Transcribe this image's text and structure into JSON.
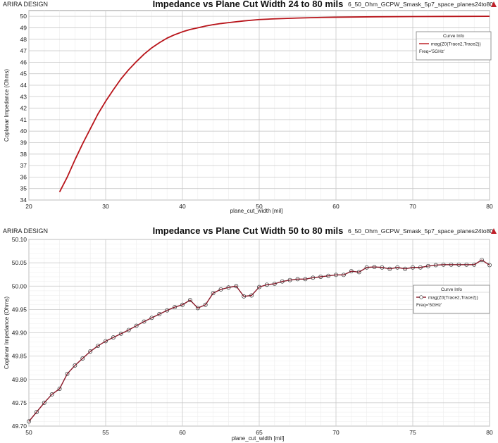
{
  "chart_data": [
    {
      "type": "line",
      "brand": "ARIRA DESIGN",
      "title": "Impedance vs Plane Cut Width 24 to 80 mils",
      "project": "6_50_Ohm_GCPW_Smask_5p7_space_planes24to80",
      "xlabel": "plane_cut_width [mil]",
      "ylabel": "Coplanar Impedance (Ohms)",
      "xlim": [
        20,
        80
      ],
      "ylim": [
        34,
        50.5
      ],
      "xticks": [
        20,
        30,
        40,
        50,
        60,
        70,
        80
      ],
      "yticks": [
        34,
        35,
        36,
        37,
        38,
        39,
        40,
        41,
        42,
        43,
        44,
        45,
        46,
        47,
        48,
        49,
        50
      ],
      "grid": true,
      "legend": {
        "title": "Curve Info",
        "placement": "top-right",
        "entries": [
          "mag(Z0(Trace2,Trace2))",
          "Freq='5GHz'"
        ]
      },
      "series": [
        {
          "name": "mag(Z0(Trace2,Trace2))",
          "color": "#b8141a",
          "markers": false,
          "x": [
            24,
            25,
            26,
            27,
            28,
            29,
            30,
            31,
            32,
            33,
            34,
            35,
            36,
            37,
            38,
            39,
            40,
            41,
            42,
            43,
            44,
            45,
            46,
            48,
            50,
            52,
            55,
            58,
            60,
            65,
            70,
            75,
            80
          ],
          "y": [
            34.7,
            36.0,
            37.5,
            38.9,
            40.2,
            41.5,
            42.6,
            43.6,
            44.55,
            45.35,
            46.05,
            46.7,
            47.25,
            47.7,
            48.1,
            48.4,
            48.65,
            48.85,
            49.0,
            49.15,
            49.27,
            49.37,
            49.45,
            49.6,
            49.72,
            49.78,
            49.85,
            49.9,
            49.92,
            49.96,
            49.98,
            49.99,
            50.0
          ]
        }
      ]
    },
    {
      "type": "line",
      "brand": "ARIRA DESIGN",
      "title": "Impedance vs Plane Cut Width 50 to 80 mils",
      "project": "6_50_Ohm_GCPW_Smask_5p7_space_planes24to80",
      "xlabel": "plane_cut_width [mil]",
      "ylabel": "Coplanar Impedance (Ohms)",
      "xlim": [
        50,
        80
      ],
      "ylim": [
        49.7,
        50.1
      ],
      "xticks": [
        50,
        55,
        60,
        65,
        70,
        75,
        80
      ],
      "yticks": [
        "49.70",
        "49.75",
        "49.80",
        "49.85",
        "49.90",
        "49.95",
        "50.00",
        "50.05",
        "50.10"
      ],
      "grid": true,
      "legend": {
        "title": "Curve Info",
        "placement": "right",
        "entries": [
          "mag(Z0(Trace2,Trace2))",
          "Freq='5GHz'"
        ]
      },
      "series": [
        {
          "name": "mag(Z0(Trace2,Trace2))",
          "color": "#8b1a2a",
          "markers": true,
          "x": [
            50,
            50.5,
            51,
            51.5,
            52,
            52.5,
            53,
            53.5,
            54,
            54.5,
            55,
            55.5,
            56,
            56.5,
            57,
            57.5,
            58,
            58.5,
            59,
            59.5,
            60,
            60.5,
            61,
            61.5,
            62,
            62.5,
            63,
            63.5,
            64,
            64.5,
            65,
            65.5,
            66,
            66.5,
            67,
            67.5,
            68,
            68.5,
            69,
            69.5,
            70,
            70.5,
            71,
            71.5,
            72,
            72.5,
            73,
            73.5,
            74,
            74.5,
            75,
            75.5,
            76,
            76.5,
            77,
            77.5,
            78,
            78.5,
            79,
            79.5,
            80
          ],
          "y": [
            49.71,
            49.73,
            49.75,
            49.768,
            49.78,
            49.812,
            49.83,
            49.845,
            49.86,
            49.872,
            49.882,
            49.89,
            49.898,
            49.906,
            49.915,
            49.924,
            49.932,
            49.94,
            49.948,
            49.955,
            49.96,
            49.97,
            49.953,
            49.96,
            49.985,
            49.993,
            49.997,
            50.0,
            49.978,
            49.98,
            49.998,
            50.003,
            50.005,
            50.01,
            50.013,
            50.015,
            50.015,
            50.018,
            50.02,
            50.022,
            50.024,
            50.024,
            50.032,
            50.03,
            50.04,
            50.041,
            50.04,
            50.037,
            50.04,
            50.037,
            50.04,
            50.04,
            50.043,
            50.045,
            50.046,
            50.046,
            50.046,
            50.046,
            50.046,
            50.056,
            50.045
          ]
        }
      ]
    }
  ]
}
